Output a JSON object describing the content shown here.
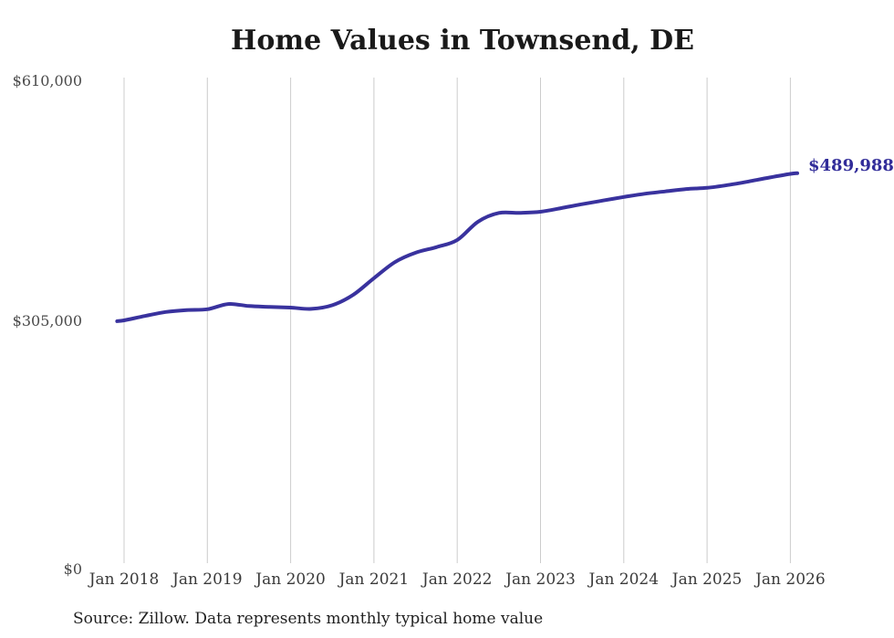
{
  "colors": {
    "background": "#ffffff",
    "line": "#39329e",
    "end_label": "#312c99",
    "gridline": "#cccccc",
    "title": "#1a1a1a",
    "y_tick_text": "#4a4a4a",
    "x_tick_text": "#3a3a3a",
    "source_text": "#1f1f1f"
  },
  "source_note": "Source: Zillow. Data represents monthly typical home value",
  "chart_data": {
    "type": "line",
    "title": "Home Values in Townsend, DE",
    "series_name": "Typical home value (USD)",
    "xlabel": "",
    "ylabel": "",
    "ylim": [
      0,
      610000
    ],
    "y_tick_labels": [
      "$610,000",
      "$305,000",
      "$0"
    ],
    "y_tick_values": [
      610000,
      305000,
      0
    ],
    "x_tick_labels": [
      "Jan 2018",
      "Jan 2019",
      "Jan 2020",
      "Jan 2021",
      "Jan 2022",
      "Jan 2023",
      "Jan 2024",
      "Jan 2025",
      "Jan 2026"
    ],
    "grid": "vertical-only",
    "legend": "none",
    "end_annotation": "$489,988",
    "latest_value": 489988,
    "points": [
      [
        "2017-12",
        304000
      ],
      [
        "2018-01",
        305000
      ],
      [
        "2018-04",
        310500
      ],
      [
        "2018-07",
        315500
      ],
      [
        "2018-10",
        318000
      ],
      [
        "2019-01",
        319000
      ],
      [
        "2019-04",
        325500
      ],
      [
        "2019-07",
        323000
      ],
      [
        "2019-10",
        322000
      ],
      [
        "2020-01",
        321000
      ],
      [
        "2020-04",
        319500
      ],
      [
        "2020-07",
        324000
      ],
      [
        "2020-10",
        337000
      ],
      [
        "2021-01",
        358000
      ],
      [
        "2021-04",
        378000
      ],
      [
        "2021-07",
        390000
      ],
      [
        "2021-10",
        397000
      ],
      [
        "2022-01",
        406000
      ],
      [
        "2022-04",
        429000
      ],
      [
        "2022-07",
        440000
      ],
      [
        "2022-10",
        440000
      ],
      [
        "2023-01",
        441500
      ],
      [
        "2023-04",
        446000
      ],
      [
        "2023-07",
        451000
      ],
      [
        "2023-10",
        455500
      ],
      [
        "2024-01",
        460000
      ],
      [
        "2024-04",
        464000
      ],
      [
        "2024-07",
        467000
      ],
      [
        "2024-10",
        470000
      ],
      [
        "2025-01",
        471500
      ],
      [
        "2025-04",
        475000
      ],
      [
        "2025-07",
        479500
      ],
      [
        "2025-10",
        484500
      ],
      [
        "2026-01",
        489000
      ],
      [
        "2026-02",
        489988
      ]
    ]
  }
}
